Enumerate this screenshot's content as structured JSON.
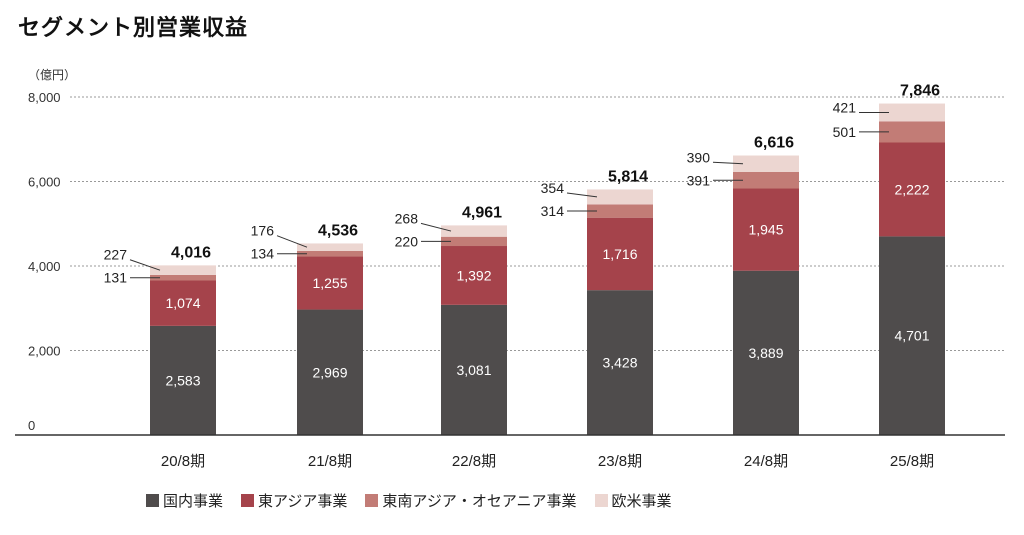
{
  "chart_data": {
    "type": "bar",
    "stacked": true,
    "title": "セグメント別営業収益",
    "ylabel": "（億円）",
    "ylim": [
      0,
      8000
    ],
    "yticks": [
      0,
      2000,
      4000,
      6000,
      8000
    ],
    "ytick_labels": [
      "0",
      "2,000",
      "4,000",
      "6,000",
      "8,000"
    ],
    "grid": true,
    "legend_position": "bottom",
    "categories": [
      "20/8期",
      "21/8期",
      "22/8期",
      "23/8期",
      "24/8期",
      "25/8期"
    ],
    "series": [
      {
        "name": "国内事業",
        "color": "#4f4c4c",
        "values": [
          2583,
          2969,
          3081,
          3428,
          3889,
          4701
        ],
        "labels": [
          "2,583",
          "2,969",
          "3,081",
          "3,428",
          "3,889",
          "4,701"
        ]
      },
      {
        "name": "東アジア事業",
        "color": "#a5434b",
        "values": [
          1074,
          1255,
          1392,
          1716,
          1945,
          2222
        ],
        "labels": [
          "1,074",
          "1,255",
          "1,392",
          "1,716",
          "1,945",
          "2,222"
        ]
      },
      {
        "name": "東南アジア・オセアニア事業",
        "color": "#c27c76",
        "values": [
          131,
          134,
          220,
          314,
          391,
          501
        ],
        "labels": [
          "131",
          "134",
          "220",
          "314",
          "391",
          "501"
        ]
      },
      {
        "name": "欧米事業",
        "color": "#ecd6d1",
        "values": [
          227,
          176,
          268,
          354,
          390,
          421
        ],
        "labels": [
          "227",
          "176",
          "268",
          "354",
          "390",
          "421"
        ]
      }
    ],
    "totals": [
      4016,
      4536,
      4961,
      5814,
      6616,
      7846
    ],
    "total_labels": [
      "4,016",
      "4,536",
      "4,961",
      "5,814",
      "6,616",
      "7,846"
    ]
  }
}
